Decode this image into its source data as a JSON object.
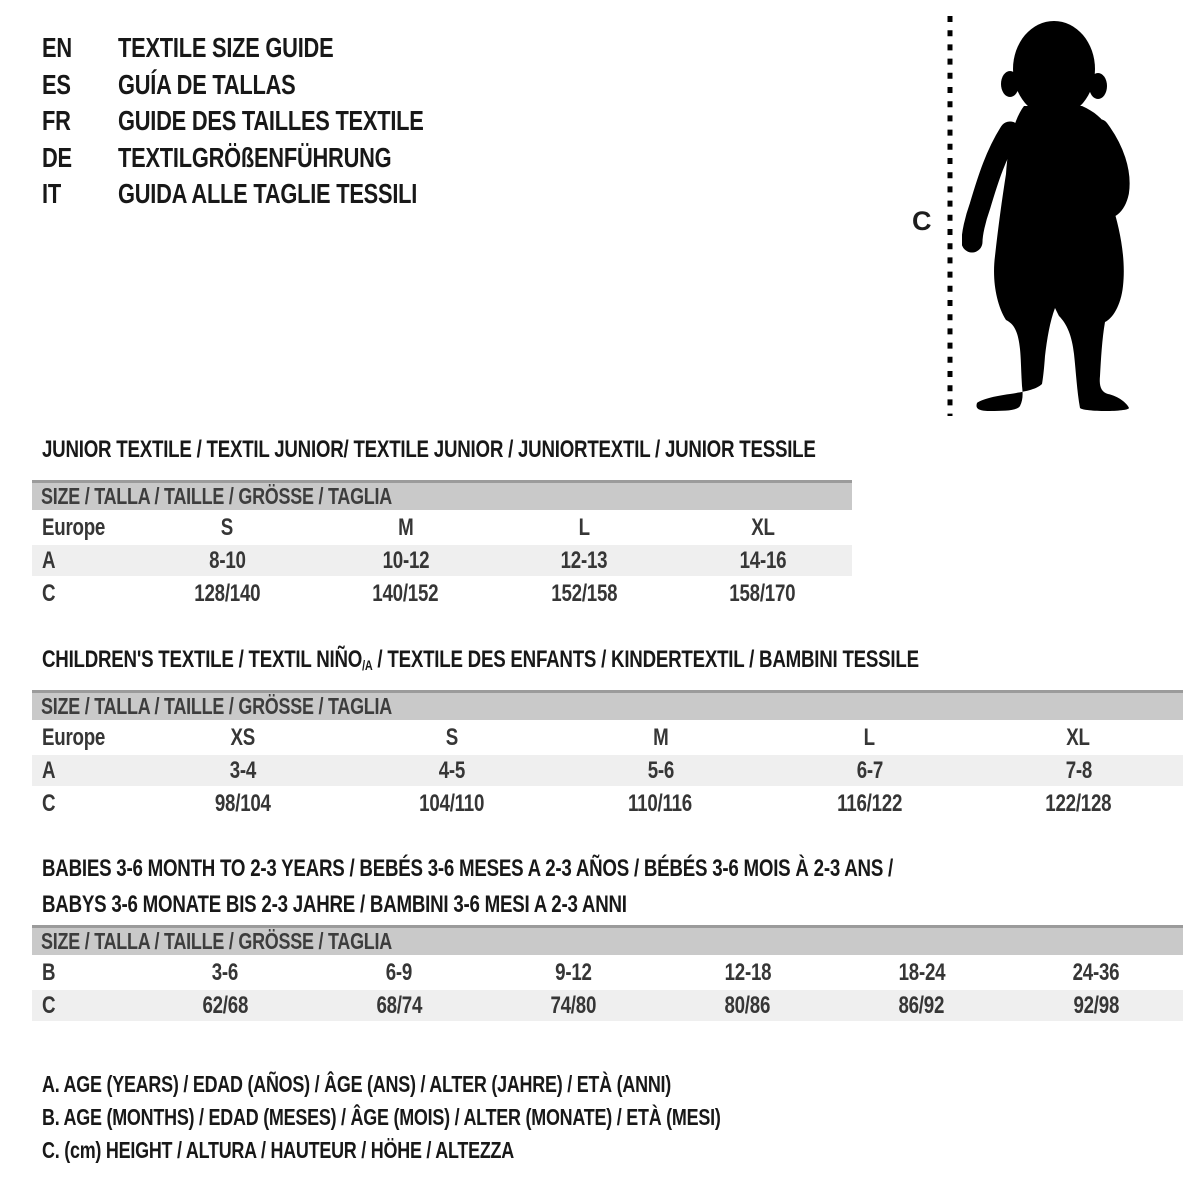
{
  "colors": {
    "background": "#ffffff",
    "text": "#1c1c1c",
    "cell_text": "#363636",
    "band_background": "#c9c9c9",
    "band_top_border": "#9b9b9b",
    "band_text": "#3d3d3d",
    "alt_row_background": "#efefef",
    "silhouette": "#000000"
  },
  "header": {
    "languages": [
      {
        "code": "EN",
        "title": "TEXTILE SIZE GUIDE"
      },
      {
        "code": "ES",
        "title": "GUÍA DE TALLAS"
      },
      {
        "code": "FR",
        "title": "GUIDE DES TAILLES TEXTILE"
      },
      {
        "code": "DE",
        "title": "TEXTILGRÖßENFÜHRUNG"
      },
      {
        "code": "IT",
        "title": "GUIDA ALLE TAGLIE TESSILI"
      }
    ]
  },
  "figure": {
    "label": "C",
    "depicts": "standing toddler silhouette with dashed height measurement line"
  },
  "tables": [
    {
      "id": "junior",
      "title_lines": [
        [
          {
            "t": "JUNIOR TEXTILE / TEXTIL JUNIOR/ TEXTILE JUNIOR / JUNIORTEXTIL / JUNIOR TESSILE"
          }
        ]
      ],
      "size_header": "SIZE / TALLA / TAILLE / GRÖSSE / TAGLIA",
      "rows": [
        [
          "Europe",
          "S",
          "M",
          "L",
          "XL"
        ],
        [
          "A",
          "8-10",
          "10-12",
          "12-13",
          "14-16"
        ],
        [
          "C",
          "128/140",
          "140/152",
          "152/158",
          "158/170"
        ]
      ]
    },
    {
      "id": "children",
      "title_lines": [
        [
          {
            "t": "CHILDREN'S TEXTILE / TEXTIL NIÑO"
          },
          {
            "t": "/A",
            "sub": true
          },
          {
            "t": " / TEXTILE DES ENFANTS / KINDERTEXTIL / BAMBINI TESSILE"
          }
        ]
      ],
      "size_header": "SIZE / TALLA / TAILLE / GRÖSSE / TAGLIA",
      "rows": [
        [
          "Europe",
          "XS",
          "S",
          "M",
          "L",
          "XL"
        ],
        [
          "A",
          "3-4",
          "4-5",
          "5-6",
          "6-7",
          "7-8"
        ],
        [
          "C",
          "98/104",
          "104/110",
          "110/116",
          "116/122",
          "122/128"
        ]
      ]
    },
    {
      "id": "babies",
      "title_lines": [
        [
          {
            "t": "BABIES 3-6 MONTH TO 2-3 YEARS / BEBÉS 3-6 MESES A 2-3 AÑOS / BÉBÉS 3-6 MOIS À 2-3 ANS /"
          }
        ],
        [
          {
            "t": "BABYS 3-6 MONATE BIS 2-3 JAHRE / BAMBINI 3-6 MESI A 2-3 ANNI"
          }
        ]
      ],
      "size_header": "SIZE / TALLA / TAILLE / GRÖSSE / TAGLIA",
      "rows": [
        [
          "B",
          "3-6",
          "6-9",
          "9-12",
          "12-18",
          "18-24",
          "24-36"
        ],
        [
          "C",
          "62/68",
          "68/74",
          "74/80",
          "80/86",
          "86/92",
          "92/98"
        ]
      ]
    }
  ],
  "legend": {
    "lines": [
      "A. AGE (YEARS) / EDAD (AÑOS) / ÂGE (ANS) / ALTER (JAHRE) / ETÀ (ANNI)",
      "B. AGE (MONTHS) / EDAD (MESES) / ÂGE (MOIS) / ALTER (MONATE) / ETÀ (MESI)",
      "C. (cm) HEIGHT / ALTURA / HAUTEUR / HÖHE / ALTEZZA"
    ]
  }
}
